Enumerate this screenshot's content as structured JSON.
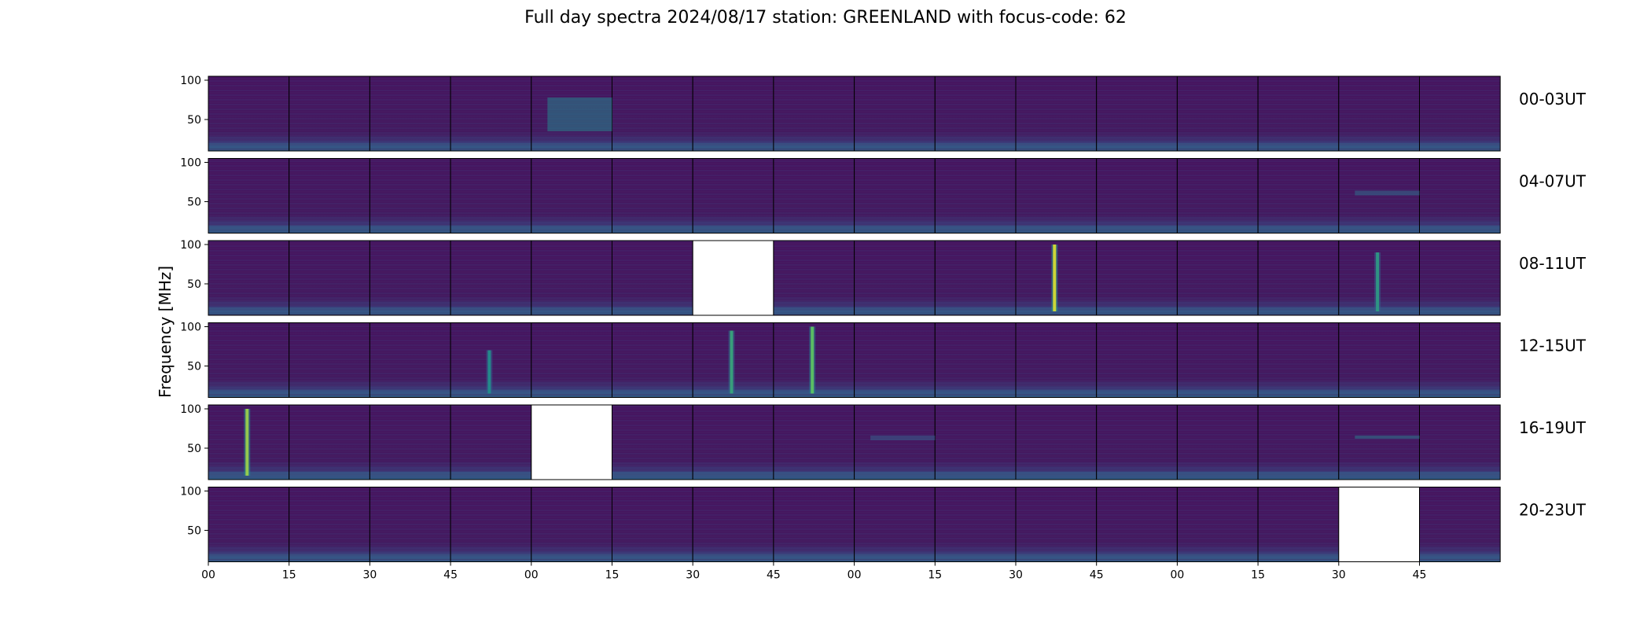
{
  "chart_data": {
    "type": "heatmap",
    "title": "Full day spectra 2024/08/17 station: GREENLAND with focus-code: 62",
    "ylabel": "Frequency [MHz]",
    "xlabel": "",
    "ylim": [
      10,
      105
    ],
    "yticks": [
      "100",
      "50"
    ],
    "ytick_values": [
      100,
      50
    ],
    "xticks": [
      "00",
      "15",
      "30",
      "45",
      "00",
      "15",
      "30",
      "45",
      "00",
      "15",
      "30",
      "45",
      "00",
      "15",
      "30",
      "45"
    ],
    "rows": [
      {
        "label": "00-03UT",
        "missing_panels": []
      },
      {
        "label": "04-07UT",
        "missing_panels": []
      },
      {
        "label": "08-11UT",
        "missing_panels": [
          6
        ]
      },
      {
        "label": "12-15UT",
        "missing_panels": []
      },
      {
        "label": "16-19UT",
        "missing_panels": [
          4
        ]
      },
      {
        "label": "20-23UT",
        "missing_panels": [
          14
        ]
      }
    ],
    "panels_per_row": 16,
    "colormap": "viridis",
    "colors": {
      "background": "#45105f",
      "low": "#440154",
      "mid": "#2c728e",
      "high": "#dde318",
      "missing": "#ffffff"
    },
    "bursts": [
      {
        "row": 0,
        "panel": 4,
        "kind": "band",
        "fmin": 35,
        "fmax": 78,
        "intensity": 0.45
      },
      {
        "row": 2,
        "panel": 10,
        "kind": "burst",
        "fmin": 15,
        "fmax": 100,
        "intensity": 0.95
      },
      {
        "row": 2,
        "panel": 14,
        "kind": "burst",
        "fmin": 15,
        "fmax": 90,
        "intensity": 0.55
      },
      {
        "row": 3,
        "panel": 3,
        "kind": "burst",
        "fmin": 15,
        "fmax": 70,
        "intensity": 0.5
      },
      {
        "row": 3,
        "panel": 6,
        "kind": "burst",
        "fmin": 15,
        "fmax": 95,
        "intensity": 0.6
      },
      {
        "row": 3,
        "panel": 7,
        "kind": "burst",
        "fmin": 15,
        "fmax": 100,
        "intensity": 0.75
      },
      {
        "row": 4,
        "panel": 0,
        "kind": "burst",
        "fmin": 15,
        "fmax": 100,
        "intensity": 0.85
      },
      {
        "row": 4,
        "panel": 8,
        "kind": "band",
        "fmin": 60,
        "fmax": 66,
        "intensity": 0.3
      },
      {
        "row": 4,
        "panel": 14,
        "kind": "band",
        "fmin": 62,
        "fmax": 66,
        "intensity": 0.4
      },
      {
        "row": 1,
        "panel": 14,
        "kind": "band",
        "fmin": 58,
        "fmax": 64,
        "intensity": 0.35
      }
    ]
  }
}
